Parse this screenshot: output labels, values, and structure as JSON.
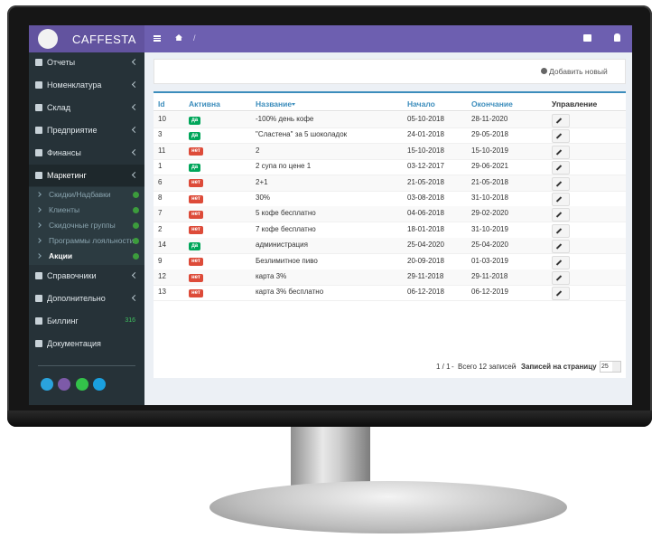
{
  "header": {
    "brand": "CAFFESTA",
    "breadcrumb_separator": "/"
  },
  "sidebar": {
    "items": [
      "Отчеты",
      "Номенклатура",
      "Склад",
      "Предприятие",
      "Финансы",
      "Маркетинг"
    ],
    "submenu": [
      "Скидки/Надбавки",
      "Клиенты",
      "Скидочные группы",
      "Программы лояльности",
      "Акции"
    ],
    "items_after": [
      "Справочники",
      "Дополнительно",
      "Биллинг",
      "Документация"
    ],
    "billing_badge": "316"
  },
  "toolbar": {
    "add_button": "Добавить новый"
  },
  "table": {
    "columns": [
      "Id",
      "Активна",
      "Название",
      "Начало",
      "Окончание",
      "Управление"
    ],
    "rows": [
      [
        "10",
        "да",
        "-100% день кофе",
        "05-10-2018",
        "28-11-2020"
      ],
      [
        "3",
        "да",
        "\"Сластена\" за 5 шоколадок",
        "24-01-2018",
        "29-05-2018"
      ],
      [
        "11",
        "нет",
        "2",
        "15-10-2018",
        "15-10-2019"
      ],
      [
        "1",
        "да",
        "2 супа по цене 1",
        "03-12-2017",
        "29-06-2021"
      ],
      [
        "6",
        "нет",
        "2+1",
        "21-05-2018",
        "21-05-2018"
      ],
      [
        "8",
        "нет",
        "30%",
        "03-08-2018",
        "31-10-2018"
      ],
      [
        "7",
        "нет",
        "5 кофе бесплатно",
        "04-06-2018",
        "29-02-2020"
      ],
      [
        "2",
        "нет",
        "7 кофе бесплатно",
        "18-01-2018",
        "31-10-2019"
      ],
      [
        "14",
        "да",
        "администрация",
        "25-04-2020",
        "25-04-2020"
      ],
      [
        "9",
        "нет",
        "Безлимитное пиво",
        "20-09-2018",
        "01-03-2019"
      ],
      [
        "12",
        "нет",
        "карта 3%",
        "29-11-2018",
        "29-11-2018"
      ],
      [
        "13",
        "нет",
        "карта 3% бесплатно",
        "06-12-2018",
        "06-12-2019"
      ]
    ]
  },
  "pagination": {
    "pages": "1 / 1",
    "separator": "-",
    "total": "Всего 12 записей",
    "per_page_label": "Записей на страницу",
    "per_page": "25"
  }
}
